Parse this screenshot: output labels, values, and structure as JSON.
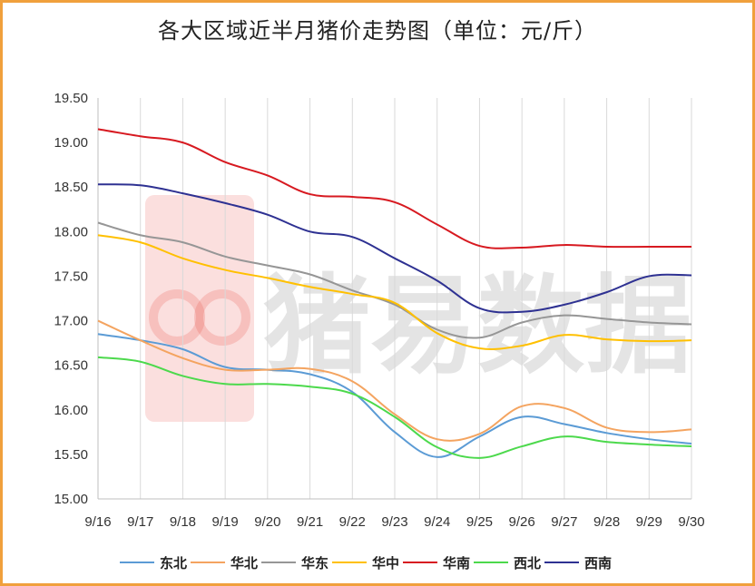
{
  "chart_data": {
    "type": "line",
    "title": "各大区域近半月猪价走势图（单位：元/斤）",
    "categories": [
      "9/16",
      "9/17",
      "9/18",
      "9/19",
      "9/20",
      "9/21",
      "9/22",
      "9/23",
      "9/24",
      "9/25",
      "9/26",
      "9/27",
      "9/28",
      "9/29",
      "9/30"
    ],
    "ylim": [
      15.0,
      19.5
    ],
    "yticks": [
      "15.00",
      "15.50",
      "16.00",
      "16.50",
      "17.00",
      "17.50",
      "18.00",
      "18.50",
      "19.00",
      "19.50"
    ],
    "grid": "vertical",
    "legend_position": "bottom",
    "series": [
      {
        "name": "东北",
        "color": "#5b9bd5",
        "values": [
          16.85,
          16.78,
          16.68,
          16.48,
          16.45,
          16.4,
          16.2,
          15.75,
          15.47,
          15.7,
          15.92,
          15.84,
          15.74,
          15.67,
          15.62
        ]
      },
      {
        "name": "华北",
        "color": "#f4a460",
        "values": [
          17.0,
          16.78,
          16.58,
          16.45,
          16.45,
          16.46,
          16.32,
          15.95,
          15.67,
          15.73,
          16.04,
          16.02,
          15.8,
          15.75,
          15.78
        ]
      },
      {
        "name": "华东",
        "color": "#969696",
        "values": [
          18.1,
          17.96,
          17.88,
          17.72,
          17.62,
          17.52,
          17.34,
          17.18,
          16.9,
          16.81,
          16.98,
          17.06,
          17.02,
          16.98,
          16.96
        ]
      },
      {
        "name": "华中",
        "color": "#ffc000",
        "values": [
          17.96,
          17.88,
          17.7,
          17.57,
          17.48,
          17.38,
          17.3,
          17.2,
          16.86,
          16.69,
          16.72,
          16.84,
          16.79,
          16.77,
          16.78
        ]
      },
      {
        "name": "华南",
        "color": "#d71920",
        "values": [
          19.15,
          19.07,
          19.0,
          18.78,
          18.63,
          18.42,
          18.39,
          18.33,
          18.08,
          17.84,
          17.82,
          17.85,
          17.83,
          17.83,
          17.83
        ]
      },
      {
        "name": "西北",
        "color": "#4cd94c",
        "values": [
          16.59,
          16.54,
          16.38,
          16.29,
          16.29,
          16.26,
          16.18,
          15.92,
          15.58,
          15.46,
          15.59,
          15.7,
          15.64,
          15.61,
          15.59
        ]
      },
      {
        "name": "西南",
        "color": "#2e3192",
        "values": [
          18.53,
          18.52,
          18.43,
          18.32,
          18.19,
          18.0,
          17.94,
          17.7,
          17.45,
          17.14,
          17.1,
          17.18,
          17.32,
          17.5,
          17.51
        ]
      }
    ]
  }
}
